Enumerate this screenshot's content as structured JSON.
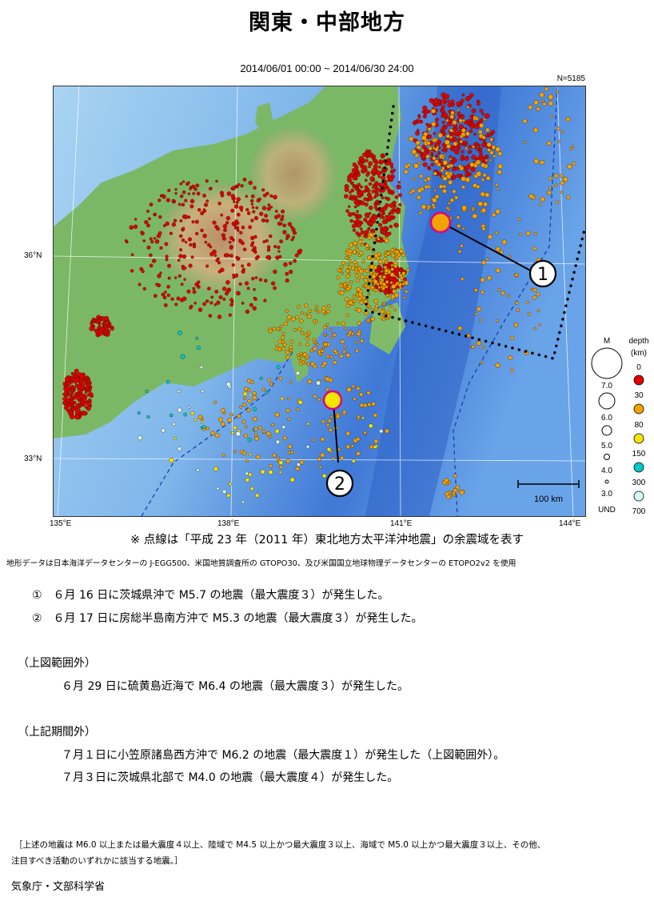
{
  "title": "関東・中部地方",
  "period": "2014/06/01 00:00 ~ 2014/06/30 24:00",
  "count": "N=5185",
  "map": {
    "lat_labels": [
      "36°N",
      "33°N"
    ],
    "lon_labels": [
      "135°E",
      "138°E",
      "141°E",
      "144°E"
    ],
    "scale_label": "100 km",
    "markers": [
      "1",
      "2"
    ]
  },
  "legend": {
    "magnitude_header": "M",
    "magnitudes": [
      "7.0",
      "6.0",
      "5.0",
      "4.0",
      "3.0",
      "UND"
    ],
    "depth_header": "depth",
    "depth_unit": "(km)",
    "depths": [
      "0",
      "30",
      "80",
      "150",
      "300",
      "700"
    ],
    "depth_colors": [
      "#e00000",
      "#f2a300",
      "#f5e600",
      "#00c8c8",
      "#d8f7f7"
    ]
  },
  "notes": {
    "aftershock_area": "※ 点線は「平成 23 年（2011 年）東北地方太平洋沖地震」の余震域を表す",
    "topography": "地形データは日本海洋データセンターの J-EGG500、米国地質調査所の GTOPO30、及び米国国立地球物理データセンターの ETOPO2v2 を使用"
  },
  "events": [
    "①　６月 16 日に茨城県沖で M5.7 の地震（最大震度３）が発生した。",
    "②　６月 17 日に房総半島南方沖で M5.3 の地震（最大震度３）が発生した。"
  ],
  "outside_area": {
    "header": "（上図範囲外）",
    "items": [
      "６月 29 日に硫黄島近海で M6.4 の地震（最大震度３）が発生した。"
    ]
  },
  "outside_period": {
    "header": "（上記期間外）",
    "items": [
      "７月１日に小笠原諸島西方沖で M6.2 の地震（最大震度１）が発生した（上図範囲外）。",
      "７月３日に茨城県北部で M4.0 の地震（最大震度４）が発生した。"
    ]
  },
  "criteria": [
    "［上述の地震は M6.0 以上または最大震度４以上、陸域で M4.5 以上かつ最大震度３以上、海域で M5.0 以上かつ最大震度３以上、その他、",
    "注目すべき活動のいずれかに該当する地震。］"
  ],
  "agency": "気象庁・文部科学省"
}
